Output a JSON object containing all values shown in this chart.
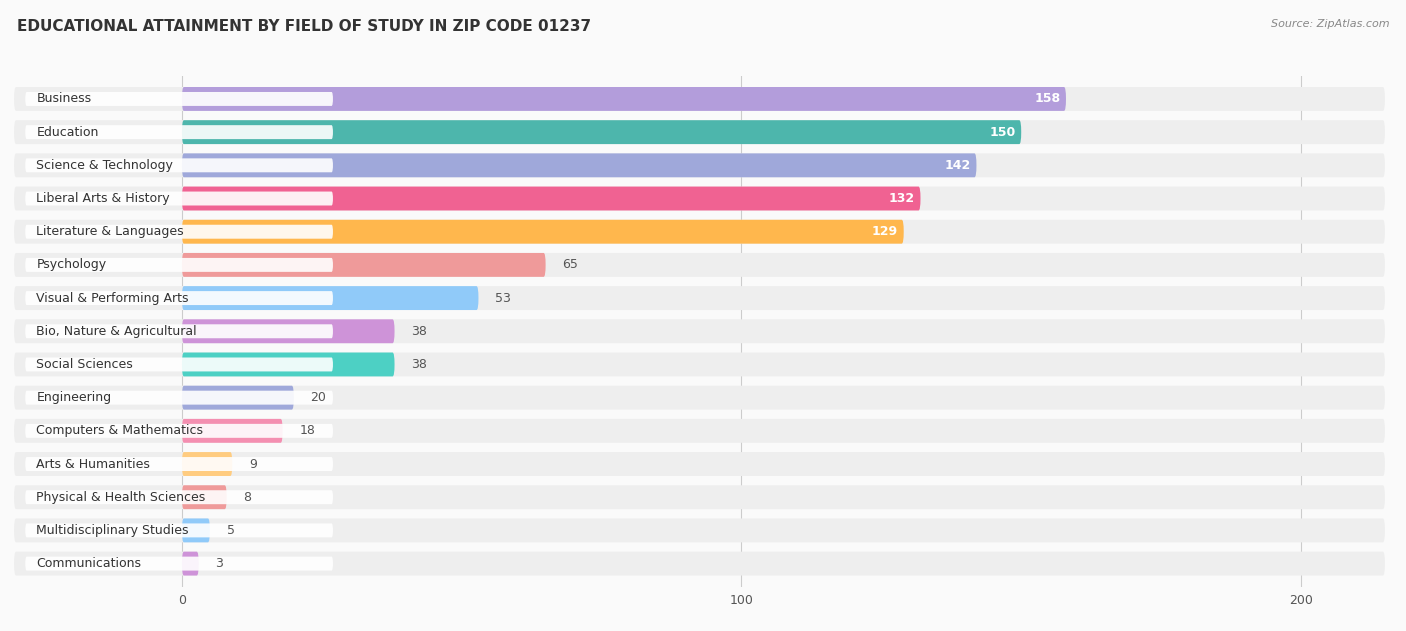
{
  "title": "EDUCATIONAL ATTAINMENT BY FIELD OF STUDY IN ZIP CODE 01237",
  "source": "Source: ZipAtlas.com",
  "categories": [
    "Business",
    "Education",
    "Science & Technology",
    "Liberal Arts & History",
    "Literature & Languages",
    "Psychology",
    "Visual & Performing Arts",
    "Bio, Nature & Agricultural",
    "Social Sciences",
    "Engineering",
    "Computers & Mathematics",
    "Arts & Humanities",
    "Physical & Health Sciences",
    "Multidisciplinary Studies",
    "Communications"
  ],
  "values": [
    158,
    150,
    142,
    132,
    129,
    65,
    53,
    38,
    38,
    20,
    18,
    9,
    8,
    5,
    3
  ],
  "colors": [
    "#b39ddb",
    "#4db6ac",
    "#9fa8da",
    "#f06292",
    "#ffb74d",
    "#ef9a9a",
    "#90caf9",
    "#ce93d8",
    "#4dd0c4",
    "#9fa8da",
    "#f48fb1",
    "#ffcc80",
    "#ef9a9a",
    "#90caf9",
    "#ce93d8"
  ],
  "row_bg_color": "#efefef",
  "bar_bg_color": "#e8e8e8",
  "xlim_min": -30,
  "xlim_max": 215,
  "xticks": [
    0,
    100,
    200
  ],
  "background_color": "#fafafa",
  "title_fontsize": 11,
  "label_fontsize": 9,
  "value_fontsize": 9,
  "source_fontsize": 8
}
